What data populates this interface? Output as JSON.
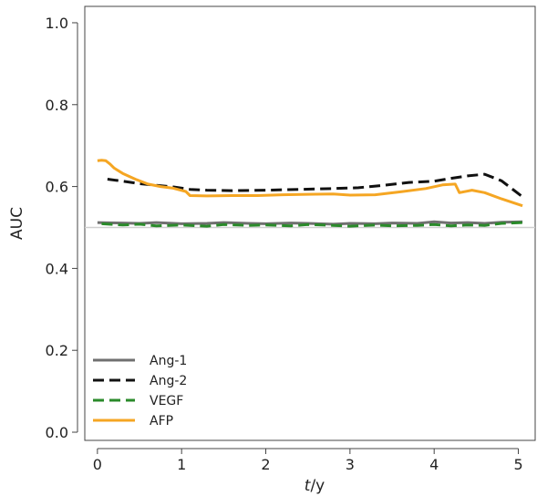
{
  "chart_data": {
    "type": "line",
    "xlabel_italic": "t",
    "xlabel_rest": "/y",
    "ylabel": "AUC",
    "xlim": [
      -0.15,
      5.2
    ],
    "ylim": [
      -0.02,
      1.04
    ],
    "xticks": [
      0,
      1,
      2,
      3,
      4,
      5
    ],
    "xtick_labels": [
      "0",
      "1",
      "2",
      "3",
      "4",
      "5"
    ],
    "yticks": [
      0.0,
      0.2,
      0.4,
      0.6,
      0.8,
      1.0
    ],
    "ytick_labels": [
      "0.0",
      "0.2",
      "0.4",
      "0.6",
      "0.8",
      "1.0"
    ],
    "reference_line": 0.5,
    "legend_position": "bottom-left",
    "series": [
      {
        "name": "Ang-1",
        "color": "#707070",
        "dash": "solid",
        "x": [
          0.0,
          0.3,
          0.5,
          0.7,
          1.0,
          1.3,
          1.5,
          1.8,
          2.0,
          2.3,
          2.5,
          2.8,
          3.0,
          3.3,
          3.5,
          3.8,
          4.0,
          4.2,
          4.4,
          4.6,
          4.8,
          5.05
        ],
        "y": [
          0.512,
          0.511,
          0.51,
          0.512,
          0.509,
          0.51,
          0.512,
          0.51,
          0.509,
          0.511,
          0.51,
          0.508,
          0.51,
          0.509,
          0.511,
          0.51,
          0.514,
          0.511,
          0.512,
          0.51,
          0.513,
          0.514
        ]
      },
      {
        "name": "Ang-2",
        "color": "#111111",
        "dash": "dash",
        "x": [
          0.12,
          0.3,
          0.5,
          0.7,
          0.9,
          1.1,
          1.3,
          1.6,
          2.0,
          2.4,
          2.8,
          3.1,
          3.4,
          3.7,
          4.0,
          4.2,
          4.4,
          4.6,
          4.8,
          5.05
        ],
        "y": [
          0.618,
          0.613,
          0.607,
          0.603,
          0.599,
          0.593,
          0.591,
          0.59,
          0.591,
          0.593,
          0.595,
          0.597,
          0.603,
          0.61,
          0.613,
          0.62,
          0.626,
          0.63,
          0.614,
          0.575
        ]
      },
      {
        "name": "VEGF",
        "color": "#2a8a2a",
        "dash": "dash",
        "x": [
          0.05,
          0.3,
          0.5,
          0.7,
          1.0,
          1.3,
          1.5,
          1.8,
          2.0,
          2.3,
          2.5,
          2.8,
          3.0,
          3.3,
          3.5,
          3.8,
          4.0,
          4.2,
          4.4,
          4.6,
          4.8,
          5.05
        ],
        "y": [
          0.509,
          0.506,
          0.508,
          0.504,
          0.506,
          0.503,
          0.507,
          0.505,
          0.506,
          0.504,
          0.507,
          0.505,
          0.503,
          0.506,
          0.504,
          0.505,
          0.507,
          0.504,
          0.506,
          0.505,
          0.51,
          0.512
        ]
      },
      {
        "name": "AFP",
        "color": "#f5a623",
        "dash": "solid",
        "x": [
          0.0,
          0.05,
          0.1,
          0.15,
          0.2,
          0.3,
          0.45,
          0.6,
          0.75,
          0.9,
          1.05,
          1.1,
          1.3,
          1.6,
          1.9,
          2.2,
          2.5,
          2.8,
          3.0,
          3.3,
          3.6,
          3.9,
          4.1,
          4.25,
          4.3,
          4.45,
          4.6,
          4.8,
          5.05
        ],
        "y": [
          0.663,
          0.664,
          0.663,
          0.655,
          0.645,
          0.632,
          0.618,
          0.606,
          0.6,
          0.596,
          0.588,
          0.578,
          0.577,
          0.578,
          0.578,
          0.58,
          0.581,
          0.582,
          0.579,
          0.58,
          0.587,
          0.595,
          0.604,
          0.606,
          0.585,
          0.591,
          0.585,
          0.57,
          0.553
        ]
      }
    ]
  }
}
